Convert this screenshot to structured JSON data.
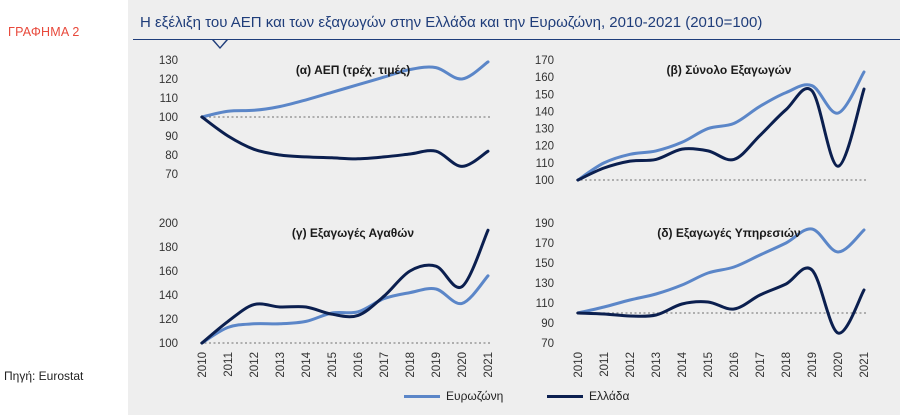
{
  "graph_label": "ΓΡΑΦΗΜΑ 2",
  "source": "Πηγή: Eurostat",
  "title": "Η εξέλιξη του ΑΕΠ και των εξαγωγών στην Ελλάδα και την Ευρωζώνη, 2010-2021 (2010=100)",
  "legend": {
    "eurozone": "Ευρωζώνη",
    "greece": "Ελλάδα"
  },
  "colors": {
    "eurozone": "#5b86c8",
    "greece": "#0b1f4f",
    "reference": "#888888"
  },
  "chart_data": [
    {
      "type": "line",
      "title": "(α) ΑΕΠ (τρέχ. τιμές)",
      "x": [
        "2010",
        "2011",
        "2012",
        "2013",
        "2014",
        "2015",
        "2016",
        "2017",
        "2018",
        "2019",
        "2020",
        "2021"
      ],
      "show_x_ticks": false,
      "ylim": [
        70,
        130
      ],
      "yticks": [
        70,
        80,
        90,
        100,
        110,
        120,
        130
      ],
      "reference": 100,
      "series": [
        {
          "name": "Ευρωζώνη",
          "values": [
            100,
            103,
            103.5,
            105.5,
            109,
            113,
            117,
            121,
            125,
            126,
            120,
            129
          ]
        },
        {
          "name": "Ελλάδα",
          "values": [
            100,
            90,
            83,
            80,
            79,
            78.5,
            78,
            79,
            80.5,
            82,
            74,
            82
          ]
        }
      ]
    },
    {
      "type": "line",
      "title": "(β) Σύνολο Εξαγωγών",
      "x": [
        "2010",
        "2011",
        "2012",
        "2013",
        "2014",
        "2015",
        "2016",
        "2017",
        "2018",
        "2019",
        "2020",
        "2021"
      ],
      "show_x_ticks": false,
      "ylim": [
        100,
        170
      ],
      "yticks": [
        100,
        110,
        120,
        130,
        140,
        150,
        160,
        170
      ],
      "reference": 100,
      "series": [
        {
          "name": "Ευρωζώνη",
          "values": [
            100,
            110,
            115,
            117,
            122,
            130,
            133,
            143,
            151,
            155,
            139,
            163
          ]
        },
        {
          "name": "Ελλάδα",
          "values": [
            100,
            107,
            111,
            112,
            118,
            117,
            112,
            126,
            141,
            152,
            108,
            153
          ]
        }
      ]
    },
    {
      "type": "line",
      "title": "(γ) Εξαγωγές Αγαθών",
      "x": [
        "2010",
        "2011",
        "2012",
        "2013",
        "2014",
        "2015",
        "2016",
        "2017",
        "2018",
        "2019",
        "2020",
        "2021"
      ],
      "show_x_ticks": true,
      "ylim": [
        100,
        200
      ],
      "yticks": [
        100,
        120,
        140,
        160,
        180,
        200
      ],
      "reference": 100,
      "series": [
        {
          "name": "Ευρωζώνη",
          "values": [
            100,
            113,
            116,
            116,
            118,
            125,
            126,
            137,
            142,
            145,
            133,
            156
          ]
        },
        {
          "name": "Ελλάδα",
          "values": [
            100,
            118,
            132,
            130,
            130,
            124,
            123,
            139,
            160,
            164,
            147,
            194
          ]
        }
      ]
    },
    {
      "type": "line",
      "title": "(δ) Εξαγωγές Υπηρεσιών",
      "x": [
        "2010",
        "2011",
        "2012",
        "2013",
        "2014",
        "2015",
        "2016",
        "2017",
        "2018",
        "2019",
        "2020",
        "2021"
      ],
      "show_x_ticks": true,
      "ylim": [
        70,
        190
      ],
      "yticks": [
        70,
        90,
        110,
        130,
        150,
        170,
        190
      ],
      "reference": 100,
      "series": [
        {
          "name": "Ευρωζώνη",
          "values": [
            100,
            106,
            113,
            119,
            128,
            140,
            146,
            158,
            170,
            184,
            161,
            183
          ]
        },
        {
          "name": "Ελλάδα",
          "values": [
            100,
            99,
            97,
            98,
            109,
            111,
            104,
            118,
            129,
            143,
            80,
            123
          ]
        }
      ]
    }
  ]
}
